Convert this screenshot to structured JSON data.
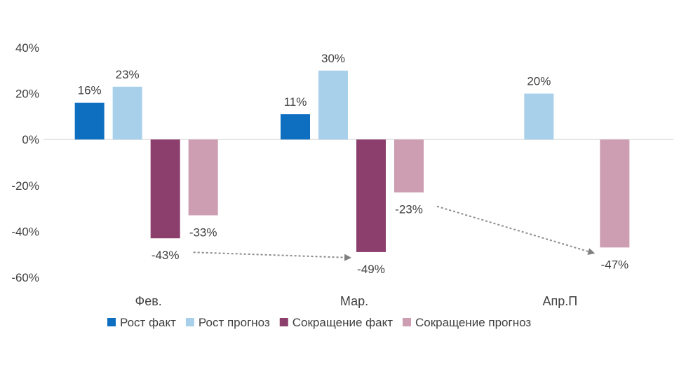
{
  "chart_data": {
    "type": "bar",
    "title": "",
    "xlabel": "",
    "ylabel": "",
    "categories": [
      "Фев.",
      "Мар.",
      "Апр.П"
    ],
    "ylim": [
      -0.6,
      0.4
    ],
    "yticks": [
      0.4,
      0.2,
      0,
      -0.2,
      -0.4,
      -0.6
    ],
    "ytick_labels": [
      "40%",
      "20%",
      "0%",
      "-20%",
      "-40%",
      "-60%"
    ],
    "grid": false,
    "legend_position": "bottom",
    "series": [
      {
        "name": "Рост факт",
        "color": "#0e6fc0",
        "values": [
          0.16,
          0.11,
          null
        ],
        "labels": [
          "16%",
          "11%",
          ""
        ]
      },
      {
        "name": "Рост прогноз",
        "color": "#a9d0ea",
        "values": [
          0.23,
          0.3,
          0.2
        ],
        "labels": [
          "23%",
          "30%",
          "20%"
        ]
      },
      {
        "name": "Сокращение факт",
        "color": "#8c3f6d",
        "values": [
          -0.43,
          -0.49,
          null
        ],
        "labels": [
          "-43%",
          "-49%",
          ""
        ]
      },
      {
        "name": "Сокращение прогноз",
        "color": "#cd9db1",
        "values": [
          -0.33,
          -0.23,
          -0.47
        ],
        "labels": [
          "-33%",
          "-23%",
          "-47%"
        ]
      }
    ],
    "annotations": [
      {
        "type": "arrow",
        "style": "dashed",
        "from": {
          "category": "Фев.",
          "series": "Сокращение факт"
        },
        "to": {
          "category": "Мар.",
          "series": "Сокращение факт"
        }
      },
      {
        "type": "arrow",
        "style": "dashed",
        "from": {
          "category": "Мар.",
          "series": "Сокращение прогноз"
        },
        "to": {
          "category": "Апр.П",
          "series": "Сокращение прогноз"
        }
      }
    ]
  }
}
